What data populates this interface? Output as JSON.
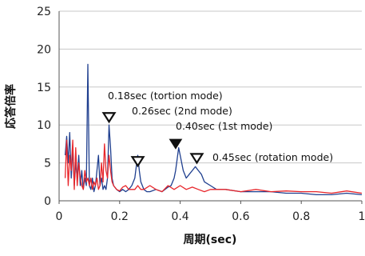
{
  "chart_data": {
    "type": "line",
    "xlabel": "周期(sec)",
    "ylabel": "応答倍率",
    "xlim": [
      0,
      1
    ],
    "ylim": [
      0,
      25
    ],
    "xticks": [
      0,
      0.2,
      0.4,
      0.6,
      0.8,
      1
    ],
    "xtick_labels": [
      "0",
      "0.2",
      "0.4",
      "0.6",
      "0.8",
      "1"
    ],
    "yticks": [
      0,
      5,
      10,
      15,
      20,
      25
    ],
    "ytick_labels": [
      "0",
      "5",
      "10",
      "15",
      "20",
      "25"
    ],
    "grid": "horizontal",
    "colors": {
      "blue": "#1f3f8f",
      "red": "#e8262b"
    },
    "series": [
      {
        "color": "#1f3f8f",
        "x": [
          0.02,
          0.025,
          0.03,
          0.035,
          0.04,
          0.045,
          0.05,
          0.055,
          0.06,
          0.065,
          0.07,
          0.075,
          0.08,
          0.085,
          0.09,
          0.095,
          0.1,
          0.105,
          0.11,
          0.115,
          0.12,
          0.125,
          0.13,
          0.135,
          0.14,
          0.145,
          0.15,
          0.155,
          0.16,
          0.165,
          0.17,
          0.175,
          0.18,
          0.19,
          0.2,
          0.21,
          0.22,
          0.23,
          0.24,
          0.25,
          0.255,
          0.26,
          0.265,
          0.27,
          0.28,
          0.29,
          0.3,
          0.32,
          0.34,
          0.36,
          0.37,
          0.38,
          0.385,
          0.39,
          0.395,
          0.4,
          0.41,
          0.42,
          0.43,
          0.44,
          0.45,
          0.46,
          0.47,
          0.48,
          0.5,
          0.52,
          0.55,
          0.6,
          0.65,
          0.7,
          0.75,
          0.8,
          0.85,
          0.9,
          0.95,
          1.0
        ],
        "y": [
          6,
          8.5,
          5,
          9,
          3,
          7,
          2,
          5,
          3,
          6,
          2,
          4,
          1.5,
          3,
          2,
          18,
          2,
          1.5,
          3,
          1.2,
          2,
          4,
          6,
          2,
          3,
          1.5,
          2,
          1.5,
          3,
          10,
          7,
          3,
          2,
          1.5,
          1.2,
          1.5,
          1.2,
          1.5,
          2,
          3,
          4.5,
          6,
          4,
          2.5,
          1.5,
          1.2,
          1.2,
          1.5,
          1.2,
          1.8,
          2,
          3,
          4,
          5.5,
          7,
          6,
          4,
          3,
          3.5,
          4,
          4.5,
          4,
          3.5,
          2.5,
          2,
          1.5,
          1.5,
          1.2,
          1.2,
          1.2,
          1.0,
          1.0,
          0.8,
          0.8,
          1.0,
          0.8
        ]
      },
      {
        "color": "#e8262b",
        "x": [
          0.02,
          0.025,
          0.03,
          0.035,
          0.04,
          0.045,
          0.05,
          0.055,
          0.06,
          0.065,
          0.07,
          0.075,
          0.08,
          0.085,
          0.09,
          0.095,
          0.1,
          0.105,
          0.11,
          0.115,
          0.12,
          0.125,
          0.13,
          0.135,
          0.14,
          0.145,
          0.15,
          0.155,
          0.16,
          0.165,
          0.17,
          0.175,
          0.18,
          0.19,
          0.2,
          0.21,
          0.22,
          0.23,
          0.24,
          0.25,
          0.26,
          0.27,
          0.28,
          0.3,
          0.32,
          0.34,
          0.36,
          0.38,
          0.4,
          0.42,
          0.44,
          0.46,
          0.48,
          0.5,
          0.55,
          0.6,
          0.65,
          0.7,
          0.75,
          0.8,
          0.85,
          0.9,
          0.95,
          1.0
        ],
        "y": [
          3,
          8,
          2,
          6,
          4,
          8,
          1.5,
          7,
          2,
          5,
          3,
          2,
          1.5,
          4,
          2.5,
          3,
          2,
          3,
          1.5,
          2.5,
          2,
          3,
          1.5,
          2,
          5,
          2.5,
          7.5,
          4,
          3,
          6,
          4,
          2.5,
          2,
          1.5,
          1.3,
          1.8,
          2,
          1.5,
          1.5,
          1.5,
          2,
          1.5,
          1.5,
          2,
          1.5,
          1.2,
          2,
          1.5,
          2,
          1.5,
          1.8,
          1.5,
          1.2,
          1.5,
          1.5,
          1.2,
          1.5,
          1.2,
          1.3,
          1.2,
          1.2,
          1.0,
          1.3,
          1.0
        ]
      }
    ],
    "annotations": [
      {
        "text": "0.18sec (tortion mode)",
        "marker_x": 0.165,
        "marker_y": 11,
        "marker": "open"
      },
      {
        "text": "0.26sec (2nd mode)",
        "marker_x": 0.26,
        "marker_y": 5.2,
        "marker": "open"
      },
      {
        "text": "0.40sec (1st mode)",
        "marker_x": 0.385,
        "marker_y": 7.5,
        "marker": "filled"
      },
      {
        "text": "0.45sec (rotation mode)",
        "marker_x": 0.455,
        "marker_y": 5.6,
        "marker": "open"
      }
    ]
  }
}
